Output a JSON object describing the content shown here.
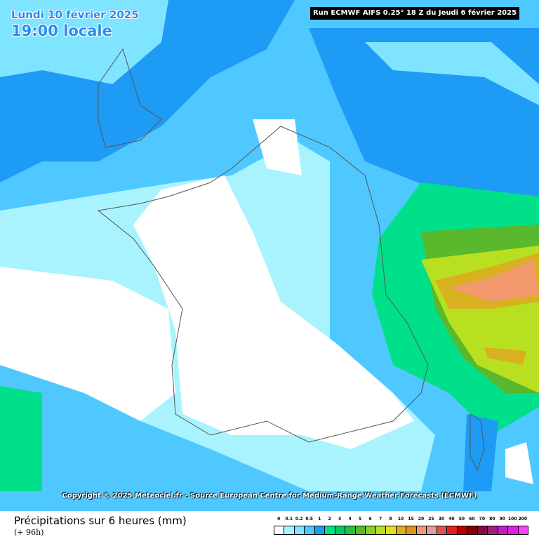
{
  "header": {
    "date": "Lundi 10 février 2025",
    "hour": "19:00 locale",
    "run": "Run ECMWF AIFS 0.25° 18 Z du Jeudi 6 février 2025"
  },
  "copyright": "Copyright © 2025 Meteociel.fr - Source European Centre for Medium-Range Weather Forecasts (ECMWF)",
  "footer": {
    "variable": "Précipitations sur 6 heures (mm)",
    "lead": "(+ 96h)"
  },
  "legend": {
    "items": [
      {
        "label": 0,
        "color": "#ffffff"
      },
      {
        "label": 0.1,
        "color": "#a9f3ff"
      },
      {
        "label": 0.2,
        "color": "#7fe4ff"
      },
      {
        "label": 0.5,
        "color": "#4fc8ff"
      },
      {
        "label": 1,
        "color": "#1e9bf5"
      },
      {
        "label": 2,
        "color": "#00e08a"
      },
      {
        "label": 3,
        "color": "#00cc66"
      },
      {
        "label": 4,
        "color": "#2cbf3c"
      },
      {
        "label": 5,
        "color": "#59b82c"
      },
      {
        "label": 6,
        "color": "#86d02a"
      },
      {
        "label": 7,
        "color": "#b8e020"
      },
      {
        "label": 8,
        "color": "#e0e020"
      },
      {
        "label": 10,
        "color": "#d8b020"
      },
      {
        "label": 15,
        "color": "#e09020"
      },
      {
        "label": 20,
        "color": "#f29a6e"
      },
      {
        "label": 25,
        "color": "#d8a0a0"
      },
      {
        "label": 30,
        "color": "#e05050"
      },
      {
        "label": 40,
        "color": "#e02020"
      },
      {
        "label": 50,
        "color": "#b00000"
      },
      {
        "label": 60,
        "color": "#800000"
      },
      {
        "label": 70,
        "color": "#801040"
      },
      {
        "label": 80,
        "color": "#a02080"
      },
      {
        "label": 90,
        "color": "#c020c0"
      },
      {
        "label": 100,
        "color": "#e020e0"
      },
      {
        "label": 200,
        "color": "#ff40ff"
      }
    ]
  }
}
